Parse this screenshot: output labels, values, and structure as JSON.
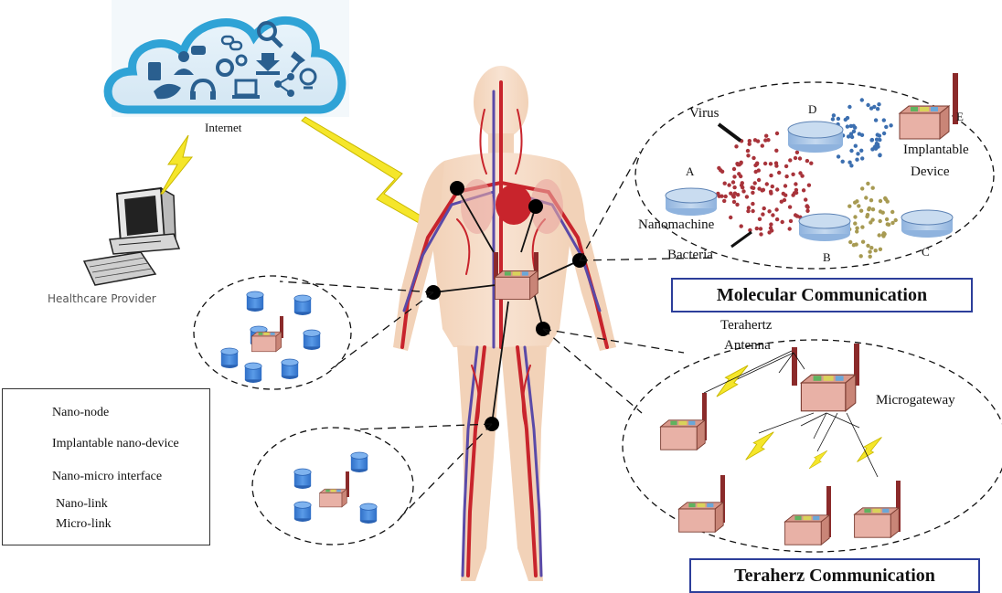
{
  "cloud": {
    "label": "Internet"
  },
  "provider": {
    "label": "Healthcare Provider"
  },
  "molecular": {
    "title": "Molecular Communication",
    "labels": {
      "virus": "Virus",
      "a": "A",
      "b": "B",
      "c": "C",
      "d": "D",
      "e": "E",
      "nanomachine": "Nanomachine",
      "bacteria": "Bacteria",
      "implantable_1": "Implantable",
      "implantable_2": "Device"
    }
  },
  "terahertz": {
    "title": "Teraherz Communication",
    "antenna_1": "Terahertz",
    "antenna_2": "Antenna",
    "gateway": "Microgateway"
  },
  "legend": {
    "items": [
      {
        "label": "Nano-node",
        "icon": "nano-node-icon"
      },
      {
        "label": "Implantable nano-device",
        "icon": "implantable-device-icon"
      },
      {
        "label": "Nano-micro interface",
        "icon": "nano-micro-interface-icon"
      },
      {
        "label": "Nano-link",
        "icon": "nano-link-icon"
      },
      {
        "label": "Micro-link",
        "icon": "micro-link-icon"
      }
    ]
  },
  "colors": {
    "cloud": "#2fa3d6",
    "node": "#3a7fd5",
    "device": "#e8b1a6",
    "antenna": "#8b2a2a",
    "link": "#f5e62a",
    "title_border": "#2c3e9a"
  }
}
